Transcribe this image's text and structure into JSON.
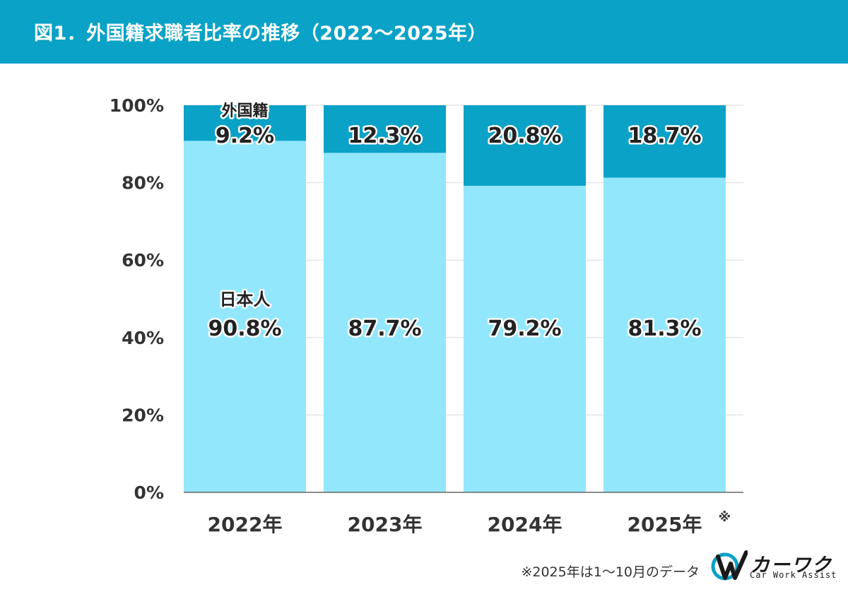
{
  "header": {
    "title": "図1．外国籍求職者比率の推移（2022〜2025年）"
  },
  "colors": {
    "header": "#0aa2c6",
    "foreign": "#0aa2c6",
    "japanese": "#93e7fc",
    "grid": "#d9d9d9"
  },
  "chart_data": {
    "type": "bar",
    "stacked": true,
    "title": "外国籍求職者比率の推移（2022〜2025年）",
    "categories": [
      "2022年",
      "2023年",
      "2024年",
      "2025年"
    ],
    "category_note": [
      "",
      "",
      "",
      "※"
    ],
    "series": [
      {
        "name": "日本人",
        "values": [
          90.8,
          87.7,
          79.2,
          81.3
        ],
        "labels": [
          "90.8%",
          "87.7%",
          "79.2%",
          "81.3%"
        ]
      },
      {
        "name": "外国籍",
        "values": [
          9.2,
          12.3,
          20.8,
          18.7
        ],
        "labels": [
          "9.2%",
          "12.3%",
          "20.8%",
          "18.7%"
        ]
      }
    ],
    "yticks": [
      "0%",
      "20%",
      "40%",
      "60%",
      "80%",
      "100%"
    ],
    "ylim": [
      0,
      100
    ],
    "grid": true,
    "legend": "inline labels on first bar"
  },
  "footnote": "※2025年は1〜10月のデータ",
  "logo": {
    "name": "カーワク",
    "sub": "Car Work Assist",
    "mark": "logo-mark-icon"
  }
}
